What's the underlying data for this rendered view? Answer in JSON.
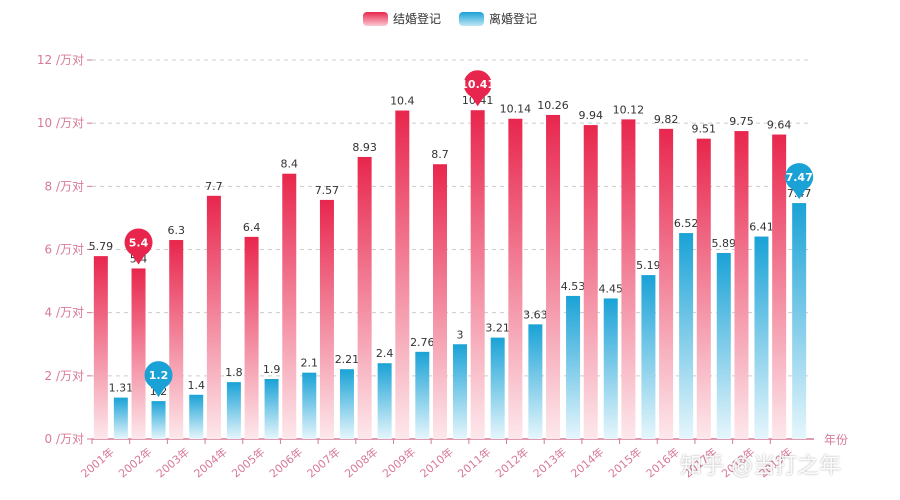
{
  "legend": {
    "marriage_label": "结婚登记",
    "divorce_label": "离婚登记",
    "marriage_color": "#e8264d",
    "divorce_color": "#1aa2d6"
  },
  "watermark": "知乎 @当打之年",
  "chart_data": {
    "type": "bar",
    "categories": [
      "2001年",
      "2002年",
      "2003年",
      "2004年",
      "2005年",
      "2006年",
      "2007年",
      "2008年",
      "2009年",
      "2010年",
      "2011年",
      "2012年",
      "2013年",
      "2014年",
      "2015年",
      "2016年",
      "2017年",
      "2018年",
      "2019年"
    ],
    "series": [
      {
        "name": "结婚登记",
        "values": [
          5.79,
          5.4,
          6.3,
          7.7,
          6.4,
          8.4,
          7.57,
          8.93,
          10.4,
          8.7,
          10.41,
          10.14,
          10.26,
          9.94,
          10.12,
          9.82,
          9.51,
          9.75,
          9.64
        ],
        "color": "#e8264d"
      },
      {
        "name": "离婚登记",
        "values": [
          1.31,
          1.2,
          1.4,
          1.8,
          1.9,
          2.1,
          2.21,
          2.4,
          2.76,
          3,
          3.21,
          3.63,
          4.53,
          4.45,
          5.19,
          6.52,
          5.89,
          6.41,
          7.47
        ],
        "color": "#1aa2d6"
      }
    ],
    "xlabel": "年份",
    "ylabel": "",
    "y_unit": " /万对",
    "ylim": [
      0,
      12
    ],
    "yticks": [
      0,
      2,
      4,
      6,
      8,
      10,
      12
    ],
    "grid": true,
    "legend_position": "top-center",
    "markers": {
      "结婚登记": {
        "max": "10.41",
        "min": "5.4"
      },
      "离婚登记": {
        "max": "7.47",
        "min": "1.2"
      }
    }
  }
}
